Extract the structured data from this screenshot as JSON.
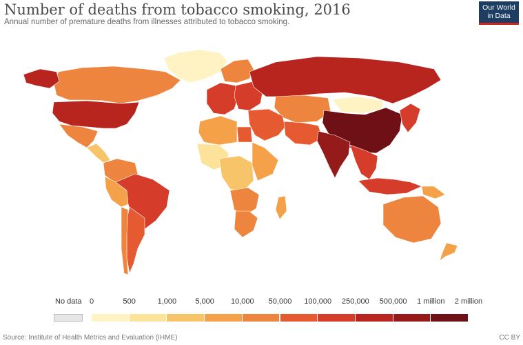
{
  "header": {
    "title": "Number of deaths from tobacco smoking, 2016",
    "subtitle": "Annual number of premature deaths from illnesses attributed to tobacco smoking."
  },
  "logo": {
    "line1": "Our World",
    "line2": "in Data",
    "bg": "#1d3d63",
    "accent": "#ce261e"
  },
  "legend": {
    "no_data_label": "No data",
    "no_data_color": "#e6e6e6",
    "thresholds": [
      "0",
      "500",
      "1,000",
      "5,000",
      "10,000",
      "50,000",
      "100,000",
      "250,000",
      "500,000",
      "1 million",
      "2 million"
    ],
    "colors": [
      "#fff3c4",
      "#fde39a",
      "#f8c46a",
      "#f4a149",
      "#ee853e",
      "#e65a31",
      "#d63c2a",
      "#b8251f",
      "#951a1a",
      "#6e1016"
    ]
  },
  "footer": {
    "source": "Source: Institute of Health Metrics and Evaluation (IHME)",
    "license": "CC BY"
  },
  "map_data": {
    "regions": [
      {
        "name": "Canada",
        "class": 4
      },
      {
        "name": "Greenland",
        "class": 0
      },
      {
        "name": "Alaska (USA)",
        "class": 7
      },
      {
        "name": "United States",
        "class": 7
      },
      {
        "name": "Mexico",
        "class": 4
      },
      {
        "name": "Central America",
        "class": 2
      },
      {
        "name": "Colombia / Venezuela",
        "class": 4
      },
      {
        "name": "Peru / Bolivia",
        "class": 3
      },
      {
        "name": "Brazil",
        "class": 6
      },
      {
        "name": "Argentina",
        "class": 5
      },
      {
        "name": "Chile",
        "class": 4
      },
      {
        "name": "Europe (West)",
        "class": 6
      },
      {
        "name": "Europe (East)",
        "class": 6
      },
      {
        "name": "Scandinavia",
        "class": 4
      },
      {
        "name": "Russia",
        "class": 7
      },
      {
        "name": "Kazakhstan / Central Asia",
        "class": 4
      },
      {
        "name": "Turkey / Middle East",
        "class": 5
      },
      {
        "name": "Iran / Pakistan",
        "class": 5
      },
      {
        "name": "Egypt",
        "class": 5
      },
      {
        "name": "North Africa",
        "class": 3
      },
      {
        "name": "West Africa",
        "class": 1
      },
      {
        "name": "Central Africa",
        "class": 2
      },
      {
        "name": "East Africa",
        "class": 3
      },
      {
        "name": "Southern Africa",
        "class": 4
      },
      {
        "name": "South Africa",
        "class": 4
      },
      {
        "name": "Madagascar",
        "class": 3
      },
      {
        "name": "Mongolia",
        "class": 0
      },
      {
        "name": "China",
        "class": 9
      },
      {
        "name": "India",
        "class": 8
      },
      {
        "name": "Southeast Asia",
        "class": 6
      },
      {
        "name": "Indonesia",
        "class": 6
      },
      {
        "name": "Japan / Korea",
        "class": 6
      },
      {
        "name": "Australia",
        "class": 4
      },
      {
        "name": "New Zealand",
        "class": 3
      },
      {
        "name": "Papua New Guinea",
        "class": 3
      }
    ]
  }
}
